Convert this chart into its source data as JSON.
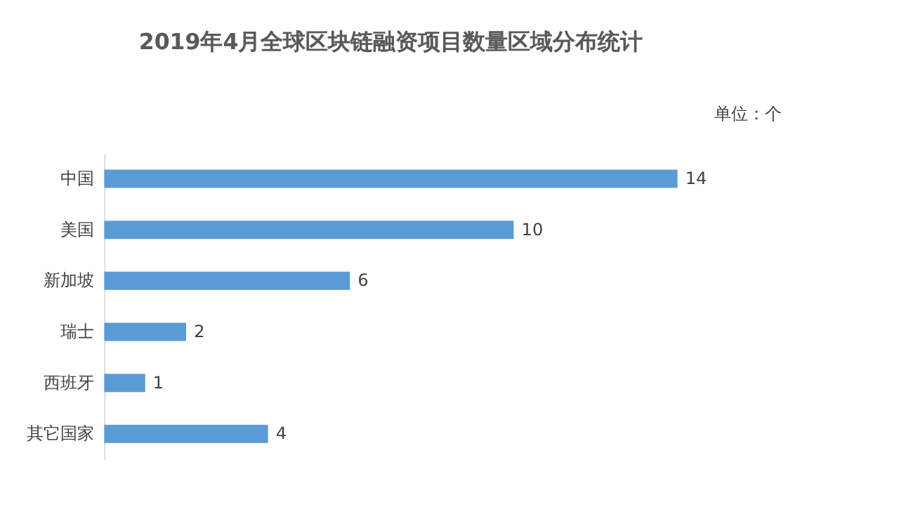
{
  "chart_data": {
    "type": "bar",
    "orientation": "horizontal",
    "title": "2019年4月全球区块链融资项目数量区域分布统计",
    "categories": [
      "中国",
      "美国",
      "新加坡",
      "瑞士",
      "西班牙",
      "其它国家"
    ],
    "values": [
      14,
      10,
      6,
      2,
      1,
      4
    ],
    "color": "#5b9bd5",
    "data_labels": true,
    "annotations": [
      "单位：个"
    ]
  }
}
